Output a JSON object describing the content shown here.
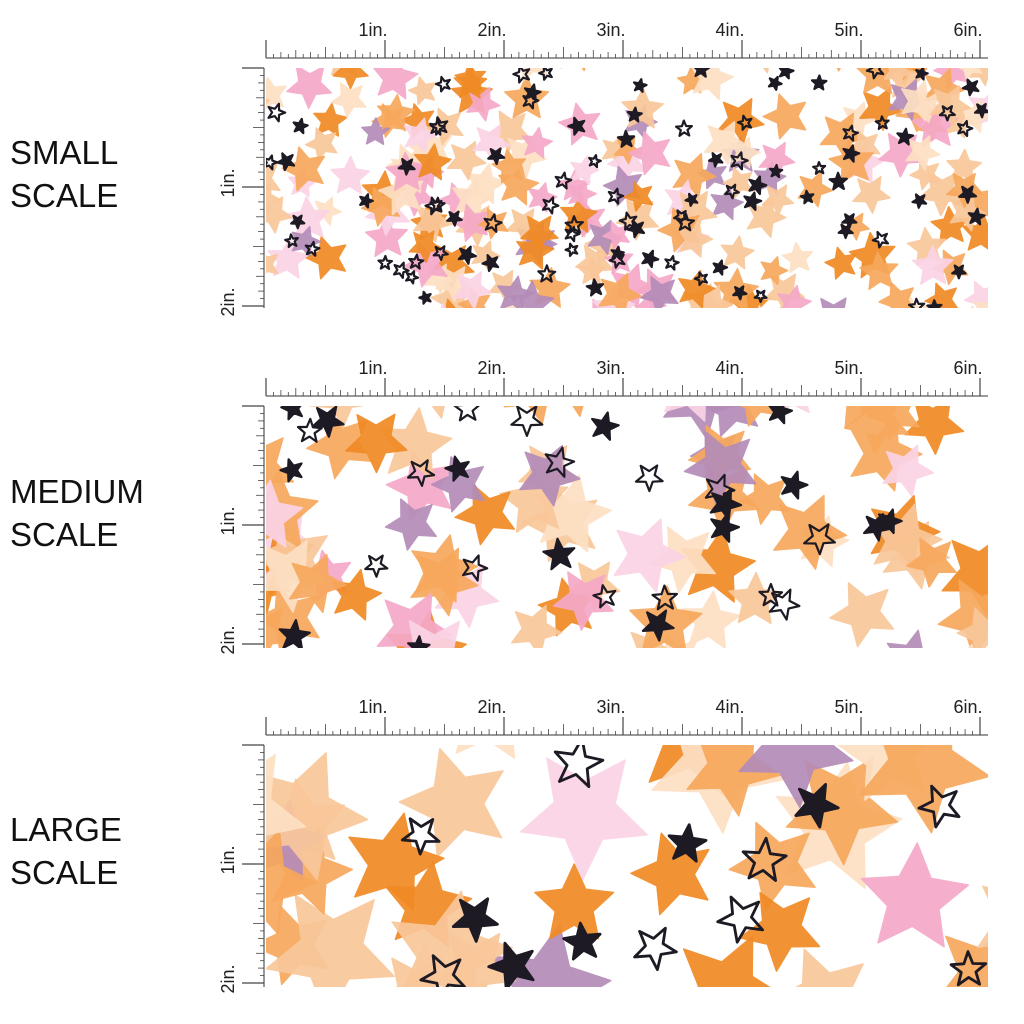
{
  "panels": [
    {
      "id": "small",
      "label_line1": "SMALL",
      "label_line2": "SCALE",
      "top_labels": [
        "1in.",
        "2in.",
        "3in.",
        "4in.",
        "5in.",
        "6in."
      ],
      "side_labels": [
        "1in.",
        "2in."
      ],
      "scale": 0.55,
      "seed": 11
    },
    {
      "id": "medium",
      "label_line1": "MEDIUM",
      "label_line2": "SCALE",
      "top_labels": [
        "1in.",
        "2in.",
        "3in.",
        "4in.",
        "5in.",
        "6in."
      ],
      "side_labels": [
        "1in.",
        "2in."
      ],
      "scale": 1.0,
      "seed": 23
    },
    {
      "id": "large",
      "label_line1": "LARGE",
      "label_line2": "SCALE",
      "top_labels": [
        "1in.",
        "2in.",
        "3in.",
        "4in.",
        "5in.",
        "6in."
      ],
      "side_labels": [
        "1in.",
        "2in."
      ],
      "scale": 1.6,
      "seed": 37
    }
  ],
  "palette": {
    "orange": "#f08a24",
    "light_orange": "#f7a85c",
    "peach": "#f9c79a",
    "pale_peach": "#fde0c4",
    "pink": "#f5a9c8",
    "light_pink": "#fbd3e6",
    "lavender": "#b48cb8",
    "black_star": "#1d1a24",
    "background": "#ffffff"
  }
}
